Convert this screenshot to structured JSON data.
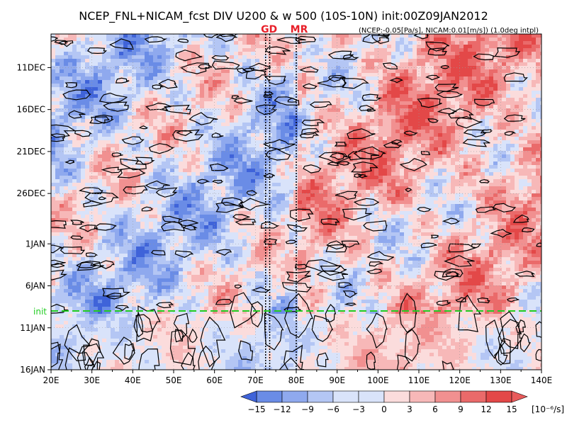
{
  "chart_data": {
    "type": "heatmap",
    "title": "NCEP_FNL+NICAM_fcst DIV U200 & w 500 (10S-10N) init:00Z09JAN2012",
    "markers": [
      {
        "label": "GD",
        "color": "#e8202a"
      },
      {
        "label": "MR",
        "color": "#e8202a"
      }
    ],
    "subtitle": "(NCEP:-0.05[Pa/s], NICAM:0.01[m/s]) (1.0deg intpl)",
    "x_axis": {
      "range": [
        20,
        140
      ],
      "ticks": [
        {
          "value": 20,
          "label": "20E"
        },
        {
          "value": 30,
          "label": "30E"
        },
        {
          "value": 40,
          "label": "40E"
        },
        {
          "value": 50,
          "label": "50E"
        },
        {
          "value": 60,
          "label": "60E"
        },
        {
          "value": 70,
          "label": "70E"
        },
        {
          "value": 80,
          "label": "80E"
        },
        {
          "value": 90,
          "label": "90E"
        },
        {
          "value": 100,
          "label": "100E"
        },
        {
          "value": 110,
          "label": "110E"
        },
        {
          "value": 120,
          "label": "120E"
        },
        {
          "value": 130,
          "label": "130E"
        },
        {
          "value": 140,
          "label": "140E"
        }
      ]
    },
    "y_axis": {
      "range": [
        "2011-12-07",
        "2012-01-16"
      ],
      "ticks": [
        {
          "value": "2011-12-11",
          "label": "11DEC"
        },
        {
          "value": "2011-12-16",
          "label": "16DEC"
        },
        {
          "value": "2011-12-21",
          "label": "21DEC"
        },
        {
          "value": "2011-12-26",
          "label": "26DEC"
        },
        {
          "value": "2012-01-01",
          "label": "1JAN"
        },
        {
          "value": "2012-01-06",
          "label": "6JAN"
        },
        {
          "value": "2012-01-11",
          "label": "11JAN"
        },
        {
          "value": "2012-01-16",
          "label": "16JAN"
        }
      ]
    },
    "init_line": {
      "label": "init",
      "date": "2012-01-09",
      "color": "#22cc22"
    },
    "vertical_lines": [
      72.5,
      73.5,
      80
    ],
    "colorbar": {
      "levels": [
        -15,
        -12,
        -9,
        -6,
        -3,
        0,
        3,
        6,
        9,
        12,
        15
      ],
      "tick_labels": [
        "−15",
        "−12",
        "−9",
        "−6",
        "−3",
        "0",
        "3",
        "6",
        "9",
        "12",
        "15"
      ],
      "units": "[10⁻⁶/s]",
      "colors": [
        "#3f63d9",
        "#6a8ce6",
        "#8fa9ee",
        "#b4c6f4",
        "#d9e3fa",
        "#ffffff",
        "#fbdcdc",
        "#f7b8b8",
        "#f19090",
        "#ea6a6a",
        "#e34848",
        "#e85a5a"
      ]
    }
  }
}
